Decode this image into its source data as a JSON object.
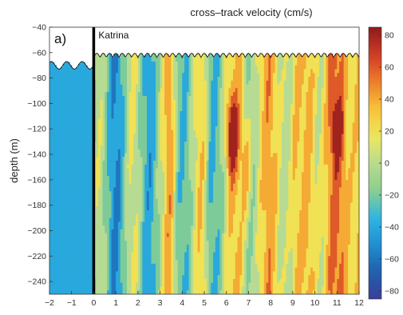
{
  "chart_data": {
    "type": "heatmap",
    "title": "cross–track velocity (cm/s)",
    "panel_label": "a)",
    "xlabel": "",
    "ylabel": "depth (m)",
    "xlim": [
      -2,
      12
    ],
    "ylim": [
      -250,
      -40
    ],
    "x_ticks": [
      -2,
      -1,
      0,
      1,
      2,
      3,
      4,
      5,
      6,
      7,
      8,
      9,
      10,
      11,
      12
    ],
    "y_ticks": [
      -40,
      -60,
      -80,
      -100,
      -120,
      -140,
      -160,
      -180,
      -200,
      -220,
      -240
    ],
    "colorbar": {
      "range": [
        -85,
        85
      ],
      "ticks": [
        80,
        60,
        40,
        20,
        0,
        -20,
        -40,
        -60,
        -80
      ],
      "colors": [
        "#3b3f98",
        "#1f5fae",
        "#1f8fd0",
        "#2fb6e3",
        "#8fcf8a",
        "#b7db92",
        "#f0e85a",
        "#f7c33a",
        "#ee7d2a",
        "#cf3a26",
        "#8e1a1a"
      ]
    },
    "annotations": [
      {
        "text": "Katrina",
        "x": 0,
        "note": "vertical marker line at x = 0 (storm passage)"
      }
    ],
    "surface_depth_m": -62,
    "field_description_cm_s": [
      {
        "x_range": [
          -2,
          0
        ],
        "value": -45
      },
      {
        "x_range": [
          0,
          1.2
        ],
        "value": -25
      },
      {
        "x_range": [
          1.2,
          2.5
        ],
        "value": -10
      },
      {
        "x_range": [
          3.2,
          3.7
        ],
        "value": 25
      },
      {
        "x_range": [
          5.9,
          6.6
        ],
        "depth_range": [
          -150,
          -90
        ],
        "value": 75
      },
      {
        "x_range": [
          10.6,
          11.4
        ],
        "depth_range": [
          -140,
          -100
        ],
        "value": 45
      }
    ]
  }
}
